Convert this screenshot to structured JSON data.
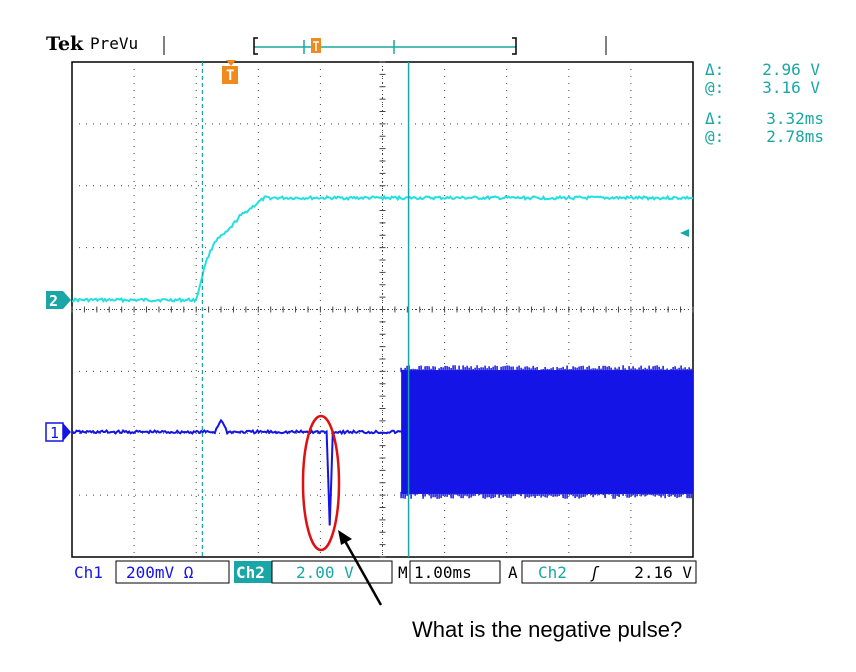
{
  "header": {
    "brand": "Tek",
    "mode": "PreVu"
  },
  "cursor_readout": {
    "voltage_delta_label": "Δ:",
    "voltage_delta": "2.96 V",
    "voltage_at_label": "@:",
    "voltage_at": "3.16 V",
    "time_delta_label": "Δ:",
    "time_delta": "3.32ms",
    "time_at_label": "@:",
    "time_at": "2.78ms"
  },
  "status_bar": {
    "ch1_label": "Ch1",
    "ch1_scale": "200mV Ω",
    "ch2_label": "Ch2",
    "ch2_scale": "2.00 V",
    "horizontal_label": "M",
    "horizontal_scale": "1.00ms",
    "trigger_label": "A",
    "trigger_source": "Ch2",
    "trigger_slope_glyph": "ʃ",
    "trigger_level": "2.16 V"
  },
  "markers": {
    "ch1": "1",
    "ch2": "2",
    "trigger": "T"
  },
  "annotation": {
    "question": "What is the negative pulse?"
  },
  "colors": {
    "ch1": "#1414e6",
    "ch2": "#22e0e0",
    "cursor": "#1aa6a6",
    "trigger": "#f08a1e",
    "annotation": "#dd1111"
  },
  "chart_data": {
    "type": "line",
    "x_unit": "ms",
    "x_per_division": 1.0,
    "x_range": [
      -2.1,
      7.9
    ],
    "divisions_x": 10,
    "divisions_y": 8,
    "grid": true,
    "series": [
      {
        "name": "Ch2",
        "volts_per_division": 2.0,
        "points": [
          [
            -2.1,
            0.0
          ],
          [
            -0.1,
            0.0
          ],
          [
            0.05,
            1.2
          ],
          [
            0.2,
            1.9
          ],
          [
            0.4,
            2.2
          ],
          [
            0.6,
            2.7
          ],
          [
            1.0,
            3.3
          ],
          [
            1.5,
            3.3
          ],
          [
            5.95,
            3.3
          ],
          [
            7.9,
            3.3
          ]
        ]
      },
      {
        "name": "Ch1",
        "volts_per_division": 0.2,
        "points": [
          [
            -2.1,
            0.0
          ],
          [
            0.2,
            0.0
          ],
          [
            0.3,
            0.04
          ],
          [
            0.4,
            0.0
          ],
          [
            2.0,
            0.0
          ],
          [
            2.05,
            -0.3
          ],
          [
            2.1,
            0.0
          ],
          [
            3.2,
            0.0
          ],
          [
            7.9,
            0.0
          ]
        ],
        "burst": {
          "start": 3.2,
          "end": 7.9,
          "min": -0.2,
          "max": 0.2
        }
      }
    ],
    "cursors": {
      "vertical_1_ms": 0.0,
      "vertical_2_ms": 3.32
    }
  }
}
